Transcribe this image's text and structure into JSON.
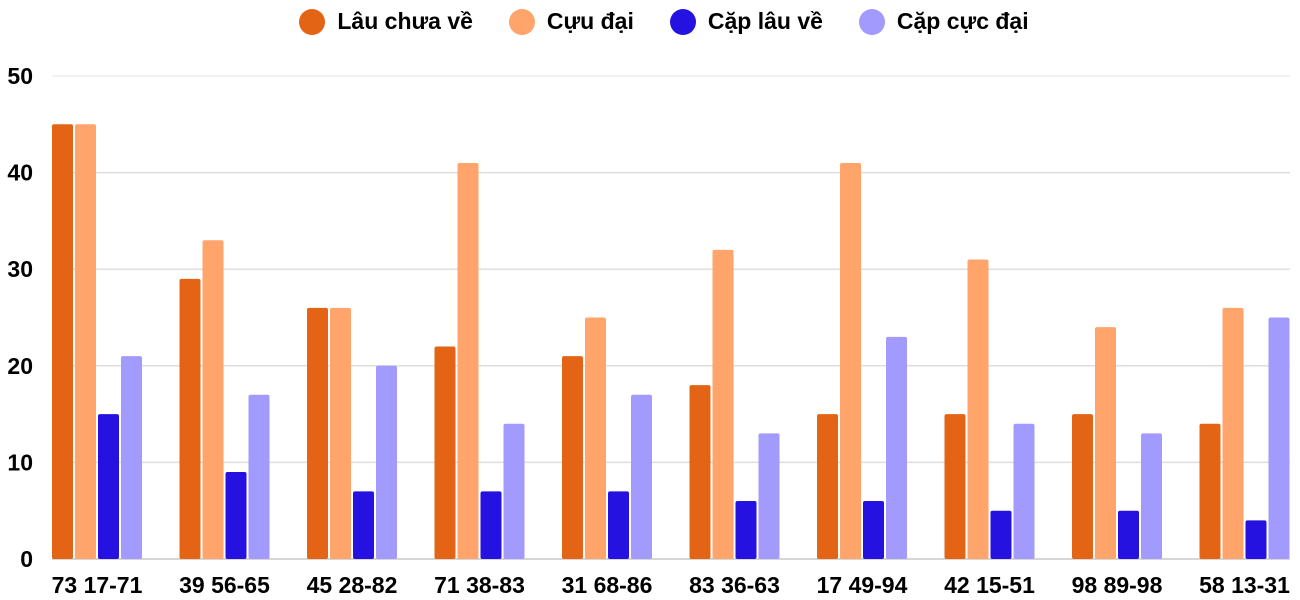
{
  "chart_data": {
    "type": "bar",
    "categories": [
      "73 17-71",
      "39 56-65",
      "45 28-82",
      "71 38-83",
      "31 68-86",
      "83 36-63",
      "17 49-94",
      "42 15-51",
      "98 89-98",
      "58 13-31"
    ],
    "series": [
      {
        "name": "Lâu chưa về",
        "color": "#E26414",
        "values": [
          45,
          29,
          26,
          22,
          21,
          18,
          15,
          15,
          15,
          14
        ]
      },
      {
        "name": "Cựu đại",
        "color": "#FFA46A",
        "values": [
          45,
          33,
          26,
          41,
          25,
          32,
          41,
          31,
          24,
          26
        ]
      },
      {
        "name": "Cặp lâu về",
        "color": "#2612E0",
        "values": [
          15,
          9,
          7,
          7,
          7,
          6,
          6,
          5,
          5,
          4
        ]
      },
      {
        "name": "Cặp cực đại",
        "color": "#A29AFC",
        "values": [
          21,
          17,
          20,
          14,
          17,
          13,
          23,
          14,
          13,
          25
        ]
      }
    ],
    "ylim": [
      0,
      50
    ],
    "yticks": [
      "0",
      "10",
      "20",
      "30",
      "40",
      "50"
    ],
    "grid": true,
    "legend_position": "top"
  }
}
